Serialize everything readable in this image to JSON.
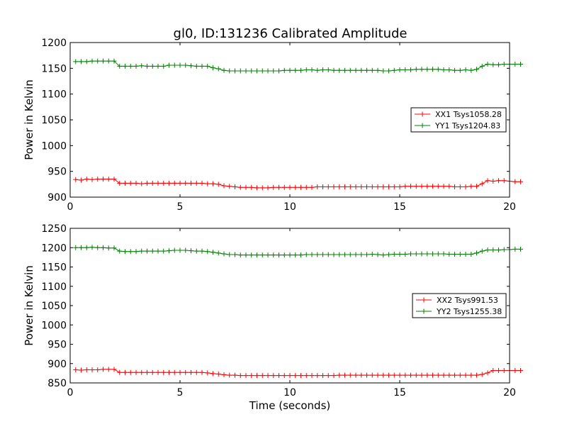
{
  "title": "gl0, ID:131236 Calibrated Amplitude",
  "colors": {
    "red": "#ff0000",
    "green": "#008000",
    "frame": "#000000"
  },
  "chart_data": [
    {
      "type": "line",
      "ylabel": "Power in Kelvin",
      "xlabel": "",
      "xlim": [
        0,
        20
      ],
      "ylim": [
        900,
        1200
      ],
      "xticks": [
        "0",
        "5",
        "10",
        "15",
        "20"
      ],
      "yticks": [
        "900",
        "950",
        "1000",
        "1050",
        "1100",
        "1150",
        "1200"
      ],
      "grid": false,
      "legend_position": "right",
      "x_start": 0.25,
      "x_step": 0.25,
      "series": [
        {
          "name": "XX1 Tsys1058.28",
          "color": "#ff0000",
          "values": [
            934,
            933,
            935,
            934,
            935,
            935,
            935,
            935,
            927,
            927,
            927,
            927,
            926,
            927,
            927,
            927,
            927,
            927,
            927,
            927,
            927,
            927,
            927,
            927,
            926,
            926,
            925,
            922,
            921,
            920,
            919,
            919,
            919,
            918,
            918,
            918,
            919,
            919,
            919,
            919,
            919,
            919,
            919,
            919,
            920,
            920,
            920,
            920,
            920,
            920,
            920,
            920,
            920,
            920,
            920,
            920,
            920,
            920,
            920,
            920,
            921,
            921,
            921,
            921,
            921,
            921,
            921,
            921,
            921,
            920,
            920,
            920,
            921,
            921,
            926,
            932,
            931,
            932,
            932,
            931,
            930,
            930
          ]
        },
        {
          "name": "YY1 Tsys1204.83",
          "color": "#008000",
          "values": [
            1163,
            1163,
            1163,
            1164,
            1164,
            1164,
            1164,
            1164,
            1154,
            1154,
            1154,
            1154,
            1155,
            1154,
            1154,
            1154,
            1154,
            1156,
            1156,
            1156,
            1156,
            1155,
            1154,
            1154,
            1154,
            1151,
            1149,
            1146,
            1145,
            1145,
            1145,
            1145,
            1145,
            1145,
            1145,
            1145,
            1145,
            1145,
            1146,
            1146,
            1146,
            1146,
            1147,
            1147,
            1146,
            1147,
            1147,
            1146,
            1146,
            1146,
            1146,
            1146,
            1146,
            1146,
            1146,
            1146,
            1145,
            1145,
            1146,
            1147,
            1147,
            1147,
            1148,
            1148,
            1148,
            1148,
            1148,
            1147,
            1147,
            1146,
            1146,
            1147,
            1146,
            1148,
            1154,
            1158,
            1157,
            1157,
            1158,
            1158,
            1158,
            1158
          ]
        }
      ]
    },
    {
      "type": "line",
      "ylabel": "Power in Kelvin",
      "xlabel": "Time (seconds)",
      "xlim": [
        0,
        20
      ],
      "ylim": [
        850,
        1250
      ],
      "xticks": [
        "0",
        "5",
        "10",
        "15",
        "20"
      ],
      "yticks": [
        "850",
        "900",
        "950",
        "1000",
        "1050",
        "1100",
        "1150",
        "1200",
        "1250"
      ],
      "grid": false,
      "legend_position": "right",
      "x_start": 0.25,
      "x_step": 0.25,
      "series": [
        {
          "name": "XX2 Tsys991.53",
          "color": "#ff0000",
          "values": [
            884,
            883,
            884,
            884,
            884,
            885,
            885,
            885,
            877,
            877,
            877,
            877,
            877,
            877,
            877,
            877,
            877,
            877,
            877,
            877,
            877,
            877,
            877,
            877,
            876,
            874,
            873,
            871,
            870,
            870,
            869,
            869,
            869,
            869,
            869,
            869,
            869,
            869,
            869,
            869,
            869,
            869,
            869,
            869,
            869,
            869,
            869,
            869,
            870,
            870,
            870,
            870,
            870,
            870,
            870,
            870,
            870,
            870,
            870,
            870,
            870,
            870,
            870,
            870,
            870,
            870,
            870,
            870,
            870,
            870,
            870,
            870,
            870,
            870,
            872,
            876,
            882,
            882,
            882,
            882,
            882,
            882
          ]
        },
        {
          "name": "YY2 Tsys1255.38",
          "color": "#008000",
          "values": [
            1200,
            1200,
            1200,
            1201,
            1200,
            1200,
            1199,
            1199,
            1191,
            1190,
            1190,
            1190,
            1191,
            1191,
            1191,
            1191,
            1191,
            1192,
            1193,
            1193,
            1193,
            1192,
            1191,
            1191,
            1190,
            1188,
            1186,
            1184,
            1182,
            1182,
            1181,
            1181,
            1181,
            1181,
            1181,
            1181,
            1181,
            1181,
            1181,
            1181,
            1181,
            1181,
            1182,
            1182,
            1182,
            1182,
            1182,
            1182,
            1182,
            1182,
            1182,
            1182,
            1182,
            1182,
            1183,
            1182,
            1181,
            1182,
            1183,
            1183,
            1183,
            1184,
            1184,
            1184,
            1184,
            1184,
            1184,
            1184,
            1183,
            1183,
            1183,
            1183,
            1183,
            1186,
            1191,
            1194,
            1194,
            1194,
            1195,
            1195,
            1196,
            1196
          ]
        }
      ]
    }
  ]
}
